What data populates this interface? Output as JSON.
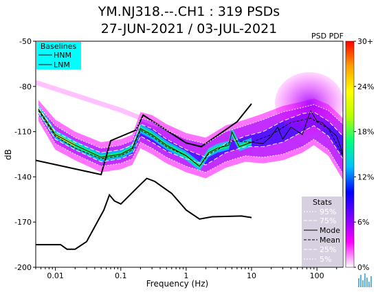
{
  "titles": {
    "line1": "YM.NJ318.--.CH1 : 319 PSDs",
    "line2": "27-JUN-2021 / 03-JUL-2021"
  },
  "chart_data": {
    "type": "heatmap",
    "xlabel": "Frequency (Hz)",
    "ylabel": "dB",
    "x_scale": "log",
    "xlim": [
      0.005,
      250
    ],
    "ylim": [
      -200,
      -50
    ],
    "x_ticks": [
      {
        "v": 0.01,
        "t": "0.01"
      },
      {
        "v": 0.1,
        "t": "0.1"
      },
      {
        "v": 1,
        "t": "1"
      },
      {
        "v": 10,
        "t": "10"
      },
      {
        "v": 100,
        "t": "100"
      }
    ],
    "y_ticks": [
      {
        "v": -50,
        "t": "-50"
      },
      {
        "v": -80,
        "t": "-80"
      },
      {
        "v": -110,
        "t": "-110"
      },
      {
        "v": -140,
        "t": "-140"
      },
      {
        "v": -170,
        "t": "-170"
      },
      {
        "v": -200,
        "t": "-200"
      }
    ],
    "colorbar": {
      "label": "PSD PDF",
      "ticks": [
        {
          "v": 0,
          "t": "0%"
        },
        {
          "v": 6,
          "t": "6%"
        },
        {
          "v": 12,
          "t": "12%"
        },
        {
          "v": 18,
          "t": "18%"
        },
        {
          "v": 24,
          "t": "24%"
        },
        {
          "v": 30,
          "t": "30+"
        }
      ],
      "colors": [
        "#ffffff",
        "#ff00ff",
        "#7a00ff",
        "#0000ff",
        "#00bfff",
        "#00ff80",
        "#b8ff00",
        "#ffff00",
        "#ffa000",
        "#ff0000"
      ]
    },
    "baselines": {
      "title": "Baselines",
      "items": [
        "HNM",
        "LNM"
      ],
      "bg_color": "#00ffff",
      "hnm": [
        [
          0.005,
          -129
        ],
        [
          0.05,
          -138.5
        ],
        [
          0.07,
          -116
        ],
        [
          0.17,
          -109
        ],
        [
          0.22,
          -99
        ],
        [
          1.0,
          -117.5
        ],
        [
          1.7,
          -120
        ],
        [
          6.0,
          -103.5
        ],
        [
          10,
          -91.5
        ]
      ],
      "lnm": [
        [
          0.005,
          -185
        ],
        [
          0.012,
          -185
        ],
        [
          0.015,
          -188
        ],
        [
          0.02,
          -188
        ],
        [
          0.03,
          -183
        ],
        [
          0.055,
          -162
        ],
        [
          0.067,
          -152
        ],
        [
          0.08,
          -156
        ],
        [
          0.1,
          -158
        ],
        [
          0.2,
          -145
        ],
        [
          0.25,
          -141
        ],
        [
          0.33,
          -143
        ],
        [
          0.6,
          -151
        ],
        [
          1.0,
          -162
        ],
        [
          1.6,
          -168
        ],
        [
          2.5,
          -166.5
        ],
        [
          7.0,
          -166
        ],
        [
          10,
          -167
        ]
      ]
    },
    "stats": {
      "title": "Stats",
      "items": [
        "95%",
        "75%",
        "Mode",
        "Mean",
        "25%",
        "5%"
      ],
      "bg_color": "#d0c8dc"
    },
    "series": [
      {
        "name": "Mode",
        "points": [
          [
            0.0055,
            -95
          ],
          [
            0.01,
            -112
          ],
          [
            0.02,
            -119
          ],
          [
            0.05,
            -127
          ],
          [
            0.1,
            -125
          ],
          [
            0.15,
            -121
          ],
          [
            0.2,
            -108
          ],
          [
            0.3,
            -112
          ],
          [
            0.5,
            -119
          ],
          [
            1.0,
            -126
          ],
          [
            1.6,
            -133
          ],
          [
            2.2,
            -124
          ],
          [
            3.0,
            -121
          ],
          [
            4.5,
            -119
          ],
          [
            5.0,
            -110
          ],
          [
            6.5,
            -120
          ],
          [
            10,
            -117
          ],
          [
            15,
            -118
          ],
          [
            20,
            -113
          ],
          [
            25,
            -107
          ],
          [
            30,
            -115
          ],
          [
            40,
            -107
          ],
          [
            60,
            -112
          ],
          [
            80,
            -96
          ],
          [
            100,
            -103
          ],
          [
            120,
            -104
          ],
          [
            150,
            -108
          ],
          [
            200,
            -113
          ],
          [
            250,
            -125
          ]
        ]
      },
      {
        "name": "Mean",
        "points": [
          [
            0.0055,
            -96
          ],
          [
            0.01,
            -113
          ],
          [
            0.02,
            -121
          ],
          [
            0.05,
            -128
          ],
          [
            0.1,
            -126
          ],
          [
            0.15,
            -122
          ],
          [
            0.2,
            -109
          ],
          [
            0.3,
            -113
          ],
          [
            0.5,
            -120
          ],
          [
            1.0,
            -126
          ],
          [
            1.6,
            -133
          ],
          [
            2.2,
            -125
          ],
          [
            3.0,
            -122
          ],
          [
            5.0,
            -116
          ],
          [
            10,
            -117
          ],
          [
            20,
            -112
          ],
          [
            40,
            -104
          ],
          [
            80,
            -101
          ],
          [
            150,
            -108
          ],
          [
            250,
            -126
          ]
        ]
      },
      {
        "name": "95%",
        "points": [
          [
            0.0055,
            -93
          ],
          [
            0.01,
            -106
          ],
          [
            0.02,
            -114
          ],
          [
            0.05,
            -121
          ],
          [
            0.1,
            -119
          ],
          [
            0.15,
            -116
          ],
          [
            0.2,
            -101
          ],
          [
            0.3,
            -103
          ],
          [
            0.5,
            -109
          ],
          [
            1.0,
            -115
          ],
          [
            2.0,
            -118
          ],
          [
            4.0,
            -110
          ],
          [
            8.0,
            -106
          ],
          [
            15,
            -102
          ],
          [
            30,
            -97
          ],
          [
            60,
            -94
          ],
          [
            90,
            -92
          ],
          [
            150,
            -96
          ],
          [
            250,
            -105
          ]
        ]
      },
      {
        "name": "75%",
        "points": [
          [
            0.0055,
            -94
          ],
          [
            0.01,
            -110
          ],
          [
            0.02,
            -117
          ],
          [
            0.05,
            -124
          ],
          [
            0.1,
            -122
          ],
          [
            0.15,
            -119
          ],
          [
            0.2,
            -105
          ],
          [
            0.3,
            -108
          ],
          [
            0.5,
            -115
          ],
          [
            1.0,
            -122
          ],
          [
            2.0,
            -127
          ],
          [
            4.0,
            -118
          ],
          [
            8.0,
            -113
          ],
          [
            15,
            -110
          ],
          [
            30,
            -103
          ],
          [
            60,
            -98
          ],
          [
            90,
            -97
          ],
          [
            150,
            -103
          ],
          [
            250,
            -113
          ]
        ]
      },
      {
        "name": "25%",
        "points": [
          [
            0.0055,
            -97
          ],
          [
            0.01,
            -115
          ],
          [
            0.02,
            -122
          ],
          [
            0.05,
            -130
          ],
          [
            0.1,
            -128
          ],
          [
            0.15,
            -125
          ],
          [
            0.2,
            -113
          ],
          [
            0.3,
            -117
          ],
          [
            0.5,
            -123
          ],
          [
            1.0,
            -128
          ],
          [
            2.0,
            -132
          ],
          [
            4.0,
            -124
          ],
          [
            8.0,
            -120
          ],
          [
            15,
            -120
          ],
          [
            30,
            -117
          ],
          [
            60,
            -110
          ],
          [
            90,
            -106
          ],
          [
            150,
            -113
          ],
          [
            250,
            -128
          ]
        ]
      },
      {
        "name": "5%",
        "points": [
          [
            0.0055,
            -99
          ],
          [
            0.01,
            -118
          ],
          [
            0.02,
            -125
          ],
          [
            0.05,
            -133
          ],
          [
            0.1,
            -131
          ],
          [
            0.15,
            -128
          ],
          [
            0.2,
            -117
          ],
          [
            0.3,
            -121
          ],
          [
            0.5,
            -127
          ],
          [
            1.0,
            -133
          ],
          [
            2.0,
            -137
          ],
          [
            4.0,
            -130
          ],
          [
            8.0,
            -126
          ],
          [
            15,
            -127
          ],
          [
            30,
            -125
          ],
          [
            60,
            -120
          ],
          [
            90,
            -115
          ],
          [
            150,
            -122
          ],
          [
            250,
            -138
          ]
        ]
      }
    ]
  }
}
